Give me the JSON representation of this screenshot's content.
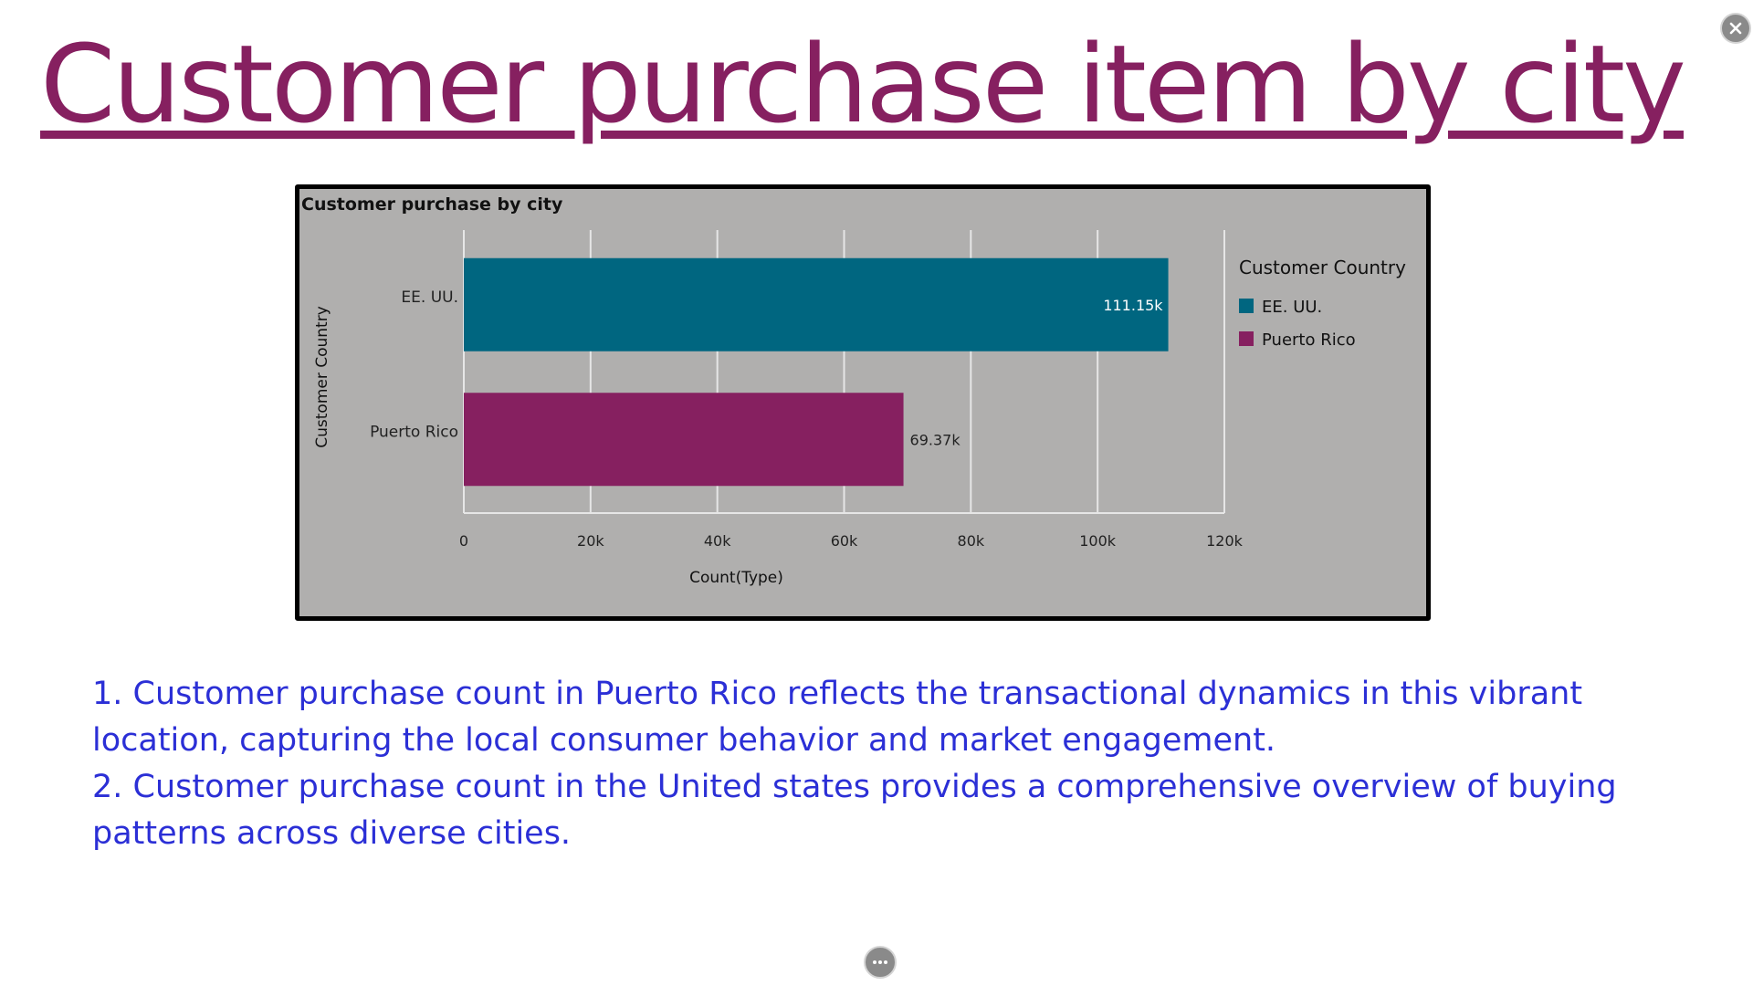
{
  "page": {
    "title": "Customer purchase item by city",
    "close_icon": "close-icon",
    "more_icon": "more-options-icon"
  },
  "chart_data": {
    "type": "bar",
    "orientation": "horizontal",
    "title": "Customer purchase by city",
    "xlabel": "Count(Type)",
    "ylabel": "Customer Country",
    "categories": [
      "EE. UU.",
      "Puerto Rico"
    ],
    "values": [
      111150,
      69370
    ],
    "data_labels": [
      "111.15k",
      "69.37k"
    ],
    "colors": [
      "#006680",
      "#862060"
    ],
    "xlim": [
      0,
      120000
    ],
    "xticks": [
      0,
      20000,
      40000,
      60000,
      80000,
      100000,
      120000
    ],
    "xtick_labels": [
      "0",
      "20k",
      "40k",
      "60k",
      "80k",
      "100k",
      "120k"
    ],
    "grid": true,
    "legend": {
      "title": "Customer Country",
      "placement": "right",
      "entries": [
        "EE. UU.",
        "Puerto Rico"
      ]
    },
    "background": "#b0afae"
  },
  "insights": [
    "1. Customer purchase count in Puerto Rico reflects the transactional dynamics in this vibrant location, capturing the local consumer behavior and market engagement.",
    "2. Customer purchase count in the United states provides a comprehensive overview of buying patterns across diverse cities."
  ],
  "colors": {
    "title": "#862060",
    "insight_text": "#2b2fd6"
  }
}
